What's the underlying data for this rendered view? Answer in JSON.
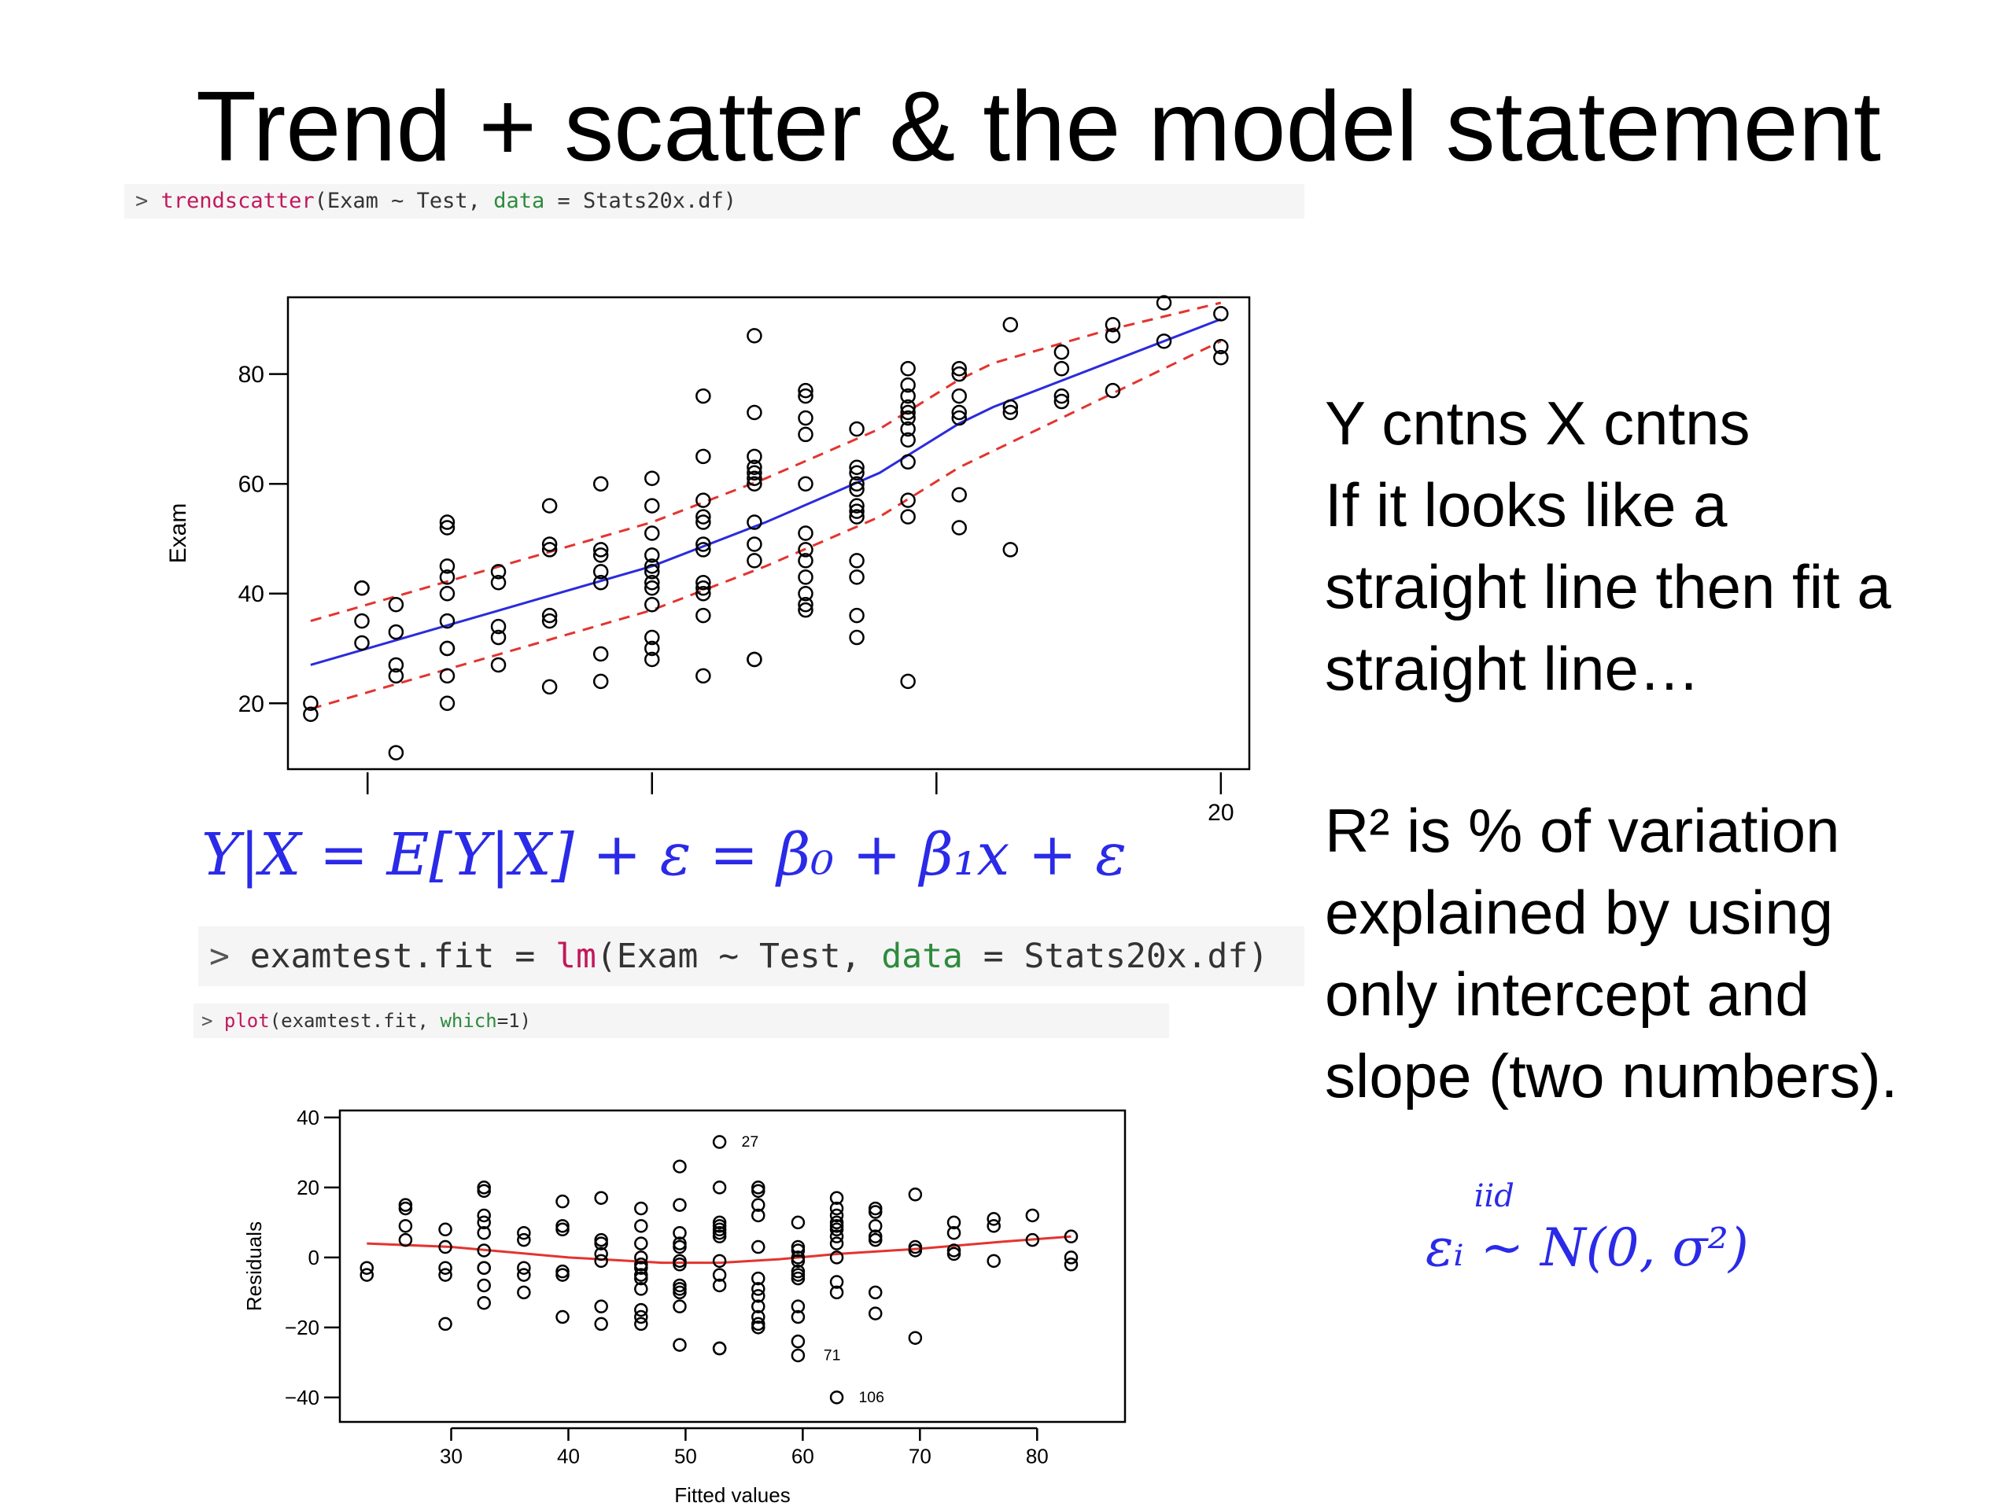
{
  "title": "Trend + scatter & the model statement",
  "code": {
    "trendscatter": {
      "prompt": ">",
      "fn": "trendscatter",
      "before_data": "(Exam ~ Test, ",
      "data_kw": "data",
      "after_data": " = Stats20x.df)"
    },
    "lm": {
      "prompt": ">",
      "lhs": "examtest.fit = ",
      "fn": "lm",
      "before_data": "(Exam ~ Test, ",
      "data_kw": "data",
      "after_data": " = Stats20x.df)"
    },
    "plot": {
      "prompt": ">",
      "fn": "plot",
      "before_kw": "(examtest.fit, ",
      "kw": "which",
      "after_kw": "=1)"
    }
  },
  "equations": {
    "model": "Y|X = E[Y|X] + ε = β₀ + β₁x + ε",
    "error": "εᵢ ~ N(0, σ²)",
    "error_over": "iid"
  },
  "side_text": {
    "block1": [
      "Y cntns X cntns",
      "If it looks like a",
      "straight line then fit a",
      "straight line…"
    ],
    "block2": [
      "R² is % of variation",
      "explained by using",
      "only intercept and",
      "slope (two numbers)."
    ]
  },
  "colors": {
    "trend": "#2b2bdd",
    "band": "#e3342f",
    "lowess": "#e3342f",
    "points": "#000000",
    "code_fn": "#c2185b",
    "code_arg": "#2e8b3d",
    "math": "#2a2ae8"
  },
  "chart_data": [
    {
      "type": "scatter",
      "title": "",
      "xlabel": "",
      "ylabel": "Exam",
      "xlim": [
        3.6,
        20.5
      ],
      "ylim": [
        8,
        94
      ],
      "x_ticks": [
        5,
        10,
        15,
        20
      ],
      "x_tick_labels": [
        "",
        "",
        "",
        "20"
      ],
      "y_ticks": [
        20,
        40,
        60,
        80
      ],
      "y_tick_labels": [
        "20",
        "40",
        "60",
        "80"
      ],
      "grid": false,
      "points": [
        [
          4.0,
          20
        ],
        [
          4.0,
          18
        ],
        [
          4.9,
          41
        ],
        [
          4.9,
          41
        ],
        [
          4.9,
          35
        ],
        [
          4.9,
          31
        ],
        [
          5.5,
          38
        ],
        [
          5.5,
          33
        ],
        [
          5.5,
          27
        ],
        [
          5.5,
          25
        ],
        [
          5.5,
          11
        ],
        [
          6.4,
          53
        ],
        [
          6.4,
          52
        ],
        [
          6.4,
          45
        ],
        [
          6.4,
          43
        ],
        [
          6.4,
          40
        ],
        [
          6.4,
          35
        ],
        [
          6.4,
          30
        ],
        [
          6.4,
          30
        ],
        [
          6.4,
          25
        ],
        [
          6.4,
          20
        ],
        [
          7.3,
          44
        ],
        [
          7.3,
          42
        ],
        [
          7.3,
          34
        ],
        [
          7.3,
          32
        ],
        [
          7.3,
          27
        ],
        [
          8.2,
          56
        ],
        [
          8.2,
          49
        ],
        [
          8.2,
          48
        ],
        [
          8.2,
          36
        ],
        [
          8.2,
          35
        ],
        [
          8.2,
          23
        ],
        [
          9.1,
          60
        ],
        [
          9.1,
          48
        ],
        [
          9.1,
          47
        ],
        [
          9.1,
          44
        ],
        [
          9.1,
          42
        ],
        [
          9.1,
          29
        ],
        [
          9.1,
          24
        ],
        [
          10.0,
          61
        ],
        [
          10.0,
          56
        ],
        [
          10.0,
          51
        ],
        [
          10.0,
          47
        ],
        [
          10.0,
          45
        ],
        [
          10.0,
          44
        ],
        [
          10.0,
          42
        ],
        [
          10.0,
          41
        ],
        [
          10.0,
          38
        ],
        [
          10.0,
          32
        ],
        [
          10.0,
          30
        ],
        [
          10.0,
          28
        ],
        [
          10.9,
          76
        ],
        [
          10.9,
          65
        ],
        [
          10.9,
          57
        ],
        [
          10.9,
          54
        ],
        [
          10.9,
          53
        ],
        [
          10.9,
          49
        ],
        [
          10.9,
          48
        ],
        [
          10.9,
          42
        ],
        [
          10.9,
          41
        ],
        [
          10.9,
          40
        ],
        [
          10.9,
          36
        ],
        [
          10.9,
          25
        ],
        [
          11.8,
          87
        ],
        [
          11.8,
          73
        ],
        [
          11.8,
          65
        ],
        [
          11.8,
          63
        ],
        [
          11.8,
          62
        ],
        [
          11.8,
          61
        ],
        [
          11.8,
          60
        ],
        [
          11.8,
          53
        ],
        [
          11.8,
          49
        ],
        [
          11.8,
          46
        ],
        [
          11.8,
          28
        ],
        [
          11.8,
          28
        ],
        [
          12.7,
          77
        ],
        [
          12.7,
          76
        ],
        [
          12.7,
          72
        ],
        [
          12.7,
          69
        ],
        [
          12.7,
          60
        ],
        [
          12.7,
          51
        ],
        [
          12.7,
          48
        ],
        [
          12.7,
          46
        ],
        [
          12.7,
          43
        ],
        [
          12.7,
          40
        ],
        [
          12.7,
          38
        ],
        [
          12.7,
          37
        ],
        [
          13.6,
          70
        ],
        [
          13.6,
          63
        ],
        [
          13.6,
          62
        ],
        [
          13.6,
          60
        ],
        [
          13.6,
          59
        ],
        [
          13.6,
          56
        ],
        [
          13.6,
          55
        ],
        [
          13.6,
          54
        ],
        [
          13.6,
          46
        ],
        [
          13.6,
          43
        ],
        [
          13.6,
          36
        ],
        [
          13.6,
          32
        ],
        [
          14.5,
          81
        ],
        [
          14.5,
          78
        ],
        [
          14.5,
          76
        ],
        [
          14.5,
          74
        ],
        [
          14.5,
          73
        ],
        [
          14.5,
          72
        ],
        [
          14.5,
          70
        ],
        [
          14.5,
          68
        ],
        [
          14.5,
          64
        ],
        [
          14.5,
          57
        ],
        [
          14.5,
          54
        ],
        [
          14.5,
          24
        ],
        [
          15.4,
          81
        ],
        [
          15.4,
          80
        ],
        [
          15.4,
          76
        ],
        [
          15.4,
          73
        ],
        [
          15.4,
          72
        ],
        [
          15.4,
          58
        ],
        [
          15.4,
          52
        ],
        [
          16.3,
          89
        ],
        [
          16.3,
          74
        ],
        [
          16.3,
          73
        ],
        [
          16.3,
          48
        ],
        [
          17.2,
          84
        ],
        [
          17.2,
          81
        ],
        [
          17.2,
          76
        ],
        [
          17.2,
          75
        ],
        [
          18.1,
          89
        ],
        [
          18.1,
          87
        ],
        [
          18.1,
          77
        ],
        [
          19.0,
          93
        ],
        [
          19.0,
          86
        ],
        [
          20.0,
          91
        ],
        [
          20.0,
          85
        ],
        [
          20.0,
          83
        ]
      ],
      "trend": [
        [
          4,
          27
        ],
        [
          6,
          33
        ],
        [
          8,
          39
        ],
        [
          10,
          45
        ],
        [
          12,
          53
        ],
        [
          14,
          62
        ],
        [
          15.4,
          71
        ],
        [
          16,
          74
        ],
        [
          18,
          82
        ],
        [
          20,
          90
        ]
      ],
      "band_upper": [
        [
          4,
          35
        ],
        [
          6,
          41
        ],
        [
          8,
          47
        ],
        [
          10,
          53
        ],
        [
          12,
          61
        ],
        [
          14,
          70
        ],
        [
          15.4,
          79
        ],
        [
          16,
          82
        ],
        [
          18,
          88
        ],
        [
          20,
          93
        ]
      ],
      "band_lower": [
        [
          4,
          19
        ],
        [
          6,
          25
        ],
        [
          8,
          31
        ],
        [
          10,
          37
        ],
        [
          12,
          45
        ],
        [
          14,
          54
        ],
        [
          15.4,
          63
        ],
        [
          16,
          66
        ],
        [
          18,
          76
        ],
        [
          20,
          86
        ]
      ]
    },
    {
      "type": "scatter",
      "title": "",
      "xlabel": "Fitted values",
      "ylabel": "Residuals",
      "xlim": [
        20.5,
        87.5
      ],
      "ylim": [
        -47,
        42
      ],
      "x_ticks": [
        30,
        40,
        50,
        60,
        70,
        80
      ],
      "x_tick_labels": [
        "30",
        "40",
        "50",
        "60",
        "70",
        "80"
      ],
      "y_ticks": [
        -40,
        -20,
        0,
        20,
        40
      ],
      "y_tick_labels": [
        "−40",
        "−20",
        "0",
        "20",
        "40"
      ],
      "grid": false,
      "point_labels": [
        {
          "x": 54,
          "y": 33,
          "label": "27"
        },
        {
          "x": 61,
          "y": -28,
          "label": "71"
        },
        {
          "x": 64,
          "y": -40,
          "label": "106"
        }
      ],
      "points": [
        [
          22.8,
          -3
        ],
        [
          22.8,
          -5
        ],
        [
          26.1,
          15
        ],
        [
          26.1,
          14
        ],
        [
          26.1,
          9
        ],
        [
          26.1,
          5
        ],
        [
          29.5,
          8
        ],
        [
          29.5,
          3
        ],
        [
          29.5,
          -3
        ],
        [
          29.5,
          -5
        ],
        [
          29.5,
          -19
        ],
        [
          32.8,
          20
        ],
        [
          32.8,
          19
        ],
        [
          32.8,
          12
        ],
        [
          32.8,
          10
        ],
        [
          32.8,
          7
        ],
        [
          32.8,
          2
        ],
        [
          32.8,
          -3
        ],
        [
          32.8,
          -3
        ],
        [
          32.8,
          -8
        ],
        [
          32.8,
          -13
        ],
        [
          36.2,
          7
        ],
        [
          36.2,
          5
        ],
        [
          36.2,
          -3
        ],
        [
          36.2,
          -5
        ],
        [
          36.2,
          -10
        ],
        [
          39.5,
          16
        ],
        [
          39.5,
          9
        ],
        [
          39.5,
          8
        ],
        [
          39.5,
          -4
        ],
        [
          39.5,
          -5
        ],
        [
          39.5,
          -17
        ],
        [
          42.8,
          17
        ],
        [
          42.8,
          5
        ],
        [
          42.8,
          4
        ],
        [
          42.8,
          1
        ],
        [
          42.8,
          -1
        ],
        [
          42.8,
          -14
        ],
        [
          42.8,
          -19
        ],
        [
          46.2,
          14
        ],
        [
          46.2,
          9
        ],
        [
          46.2,
          4
        ],
        [
          46.2,
          0
        ],
        [
          46.2,
          -2
        ],
        [
          46.2,
          -3
        ],
        [
          46.2,
          -5
        ],
        [
          46.2,
          -6
        ],
        [
          46.2,
          -9
        ],
        [
          46.2,
          -15
        ],
        [
          46.2,
          -17
        ],
        [
          46.2,
          -19
        ],
        [
          49.5,
          26
        ],
        [
          49.5,
          15
        ],
        [
          49.5,
          7
        ],
        [
          49.5,
          4
        ],
        [
          49.5,
          3
        ],
        [
          49.5,
          -1
        ],
        [
          49.5,
          -2
        ],
        [
          49.5,
          -8
        ],
        [
          49.5,
          -9
        ],
        [
          49.5,
          -10
        ],
        [
          49.5,
          -14
        ],
        [
          49.5,
          -25
        ],
        [
          52.9,
          33
        ],
        [
          52.9,
          20
        ],
        [
          52.9,
          10
        ],
        [
          52.9,
          9
        ],
        [
          52.9,
          8
        ],
        [
          52.9,
          7
        ],
        [
          52.9,
          6
        ],
        [
          52.9,
          -1
        ],
        [
          52.9,
          -5
        ],
        [
          52.9,
          -8
        ],
        [
          52.9,
          -26
        ],
        [
          52.9,
          -26
        ],
        [
          56.2,
          20
        ],
        [
          56.2,
          19
        ],
        [
          56.2,
          15
        ],
        [
          56.2,
          12
        ],
        [
          56.2,
          3
        ],
        [
          56.2,
          -6
        ],
        [
          56.2,
          -9
        ],
        [
          56.2,
          -11
        ],
        [
          56.2,
          -14
        ],
        [
          56.2,
          -17
        ],
        [
          56.2,
          -19
        ],
        [
          56.2,
          -20
        ],
        [
          59.6,
          10
        ],
        [
          59.6,
          3
        ],
        [
          59.6,
          2
        ],
        [
          59.6,
          0
        ],
        [
          59.6,
          -1
        ],
        [
          59.6,
          -4
        ],
        [
          59.6,
          -5
        ],
        [
          59.6,
          -6
        ],
        [
          59.6,
          -14
        ],
        [
          59.6,
          -17
        ],
        [
          59.6,
          -24
        ],
        [
          59.6,
          -28
        ],
        [
          62.9,
          17
        ],
        [
          62.9,
          14
        ],
        [
          62.9,
          12
        ],
        [
          62.9,
          10
        ],
        [
          62.9,
          9
        ],
        [
          62.9,
          8
        ],
        [
          62.9,
          6
        ],
        [
          62.9,
          4
        ],
        [
          62.9,
          0
        ],
        [
          62.9,
          -7
        ],
        [
          62.9,
          -10
        ],
        [
          62.9,
          -40
        ],
        [
          66.2,
          14
        ],
        [
          66.2,
          13
        ],
        [
          66.2,
          9
        ],
        [
          66.2,
          6
        ],
        [
          66.2,
          5
        ],
        [
          66.2,
          -10
        ],
        [
          66.2,
          -16
        ],
        [
          69.6,
          18
        ],
        [
          69.6,
          3
        ],
        [
          69.6,
          2
        ],
        [
          69.6,
          -23
        ],
        [
          72.9,
          10
        ],
        [
          72.9,
          7
        ],
        [
          72.9,
          2
        ],
        [
          72.9,
          1
        ],
        [
          76.3,
          11
        ],
        [
          76.3,
          9
        ],
        [
          76.3,
          -1
        ],
        [
          79.6,
          12
        ],
        [
          79.6,
          5
        ],
        [
          82.9,
          6
        ],
        [
          82.9,
          0
        ],
        [
          82.9,
          -2
        ]
      ],
      "lowess": [
        [
          22.8,
          4
        ],
        [
          30,
          3
        ],
        [
          40,
          0
        ],
        [
          48,
          -1.5
        ],
        [
          53,
          -1.5
        ],
        [
          58,
          -0.5
        ],
        [
          63,
          1
        ],
        [
          70,
          2.5
        ],
        [
          77,
          4.5
        ],
        [
          82.9,
          6
        ]
      ]
    }
  ]
}
